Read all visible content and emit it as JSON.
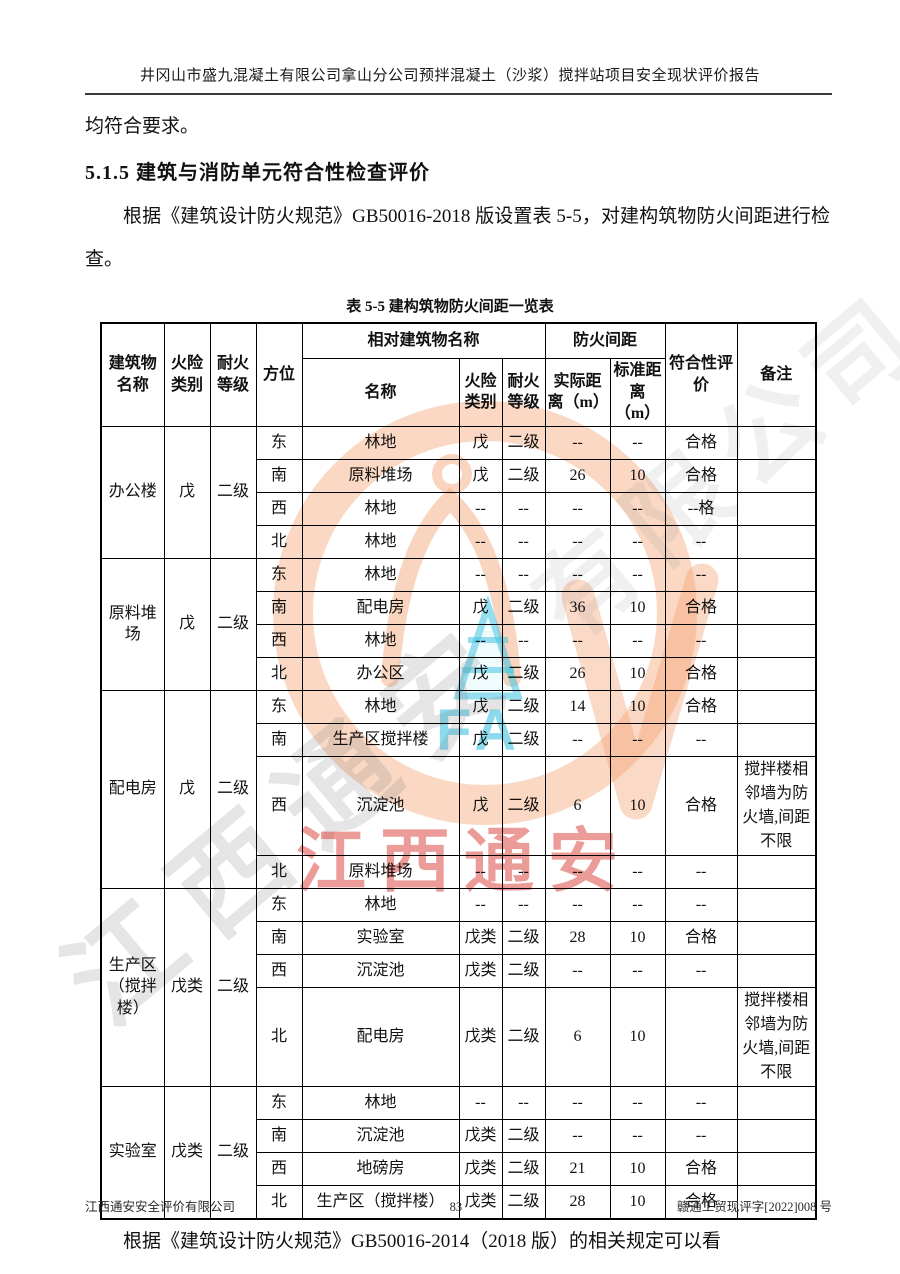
{
  "page": {
    "running_header": "井冈山市盛九混凝土有限公司拿山分公司预拌混凝土（沙浆）搅拌站项目安全现状评价报告",
    "lead_text": "均符合要求。",
    "section_heading": "5.1.5 建筑与消防单元符合性检查评价",
    "paragraph": "根据《建筑设计防火规范》GB50016-2018 版设置表 5-5，对建构筑物防火间距进行检查。",
    "closing_paragraph": "根据《建筑设计防火规范》GB50016-2014（2018 版）的相关规定可以看",
    "footer": {
      "company": "江西通安安全评价有限公司",
      "page_number": "83",
      "doc_number": "赣通工贸现评字[2022]008 号"
    }
  },
  "table": {
    "caption": "表 5-5 建构筑物防火间距一览表",
    "headers": {
      "building_name": "建筑物名称",
      "fire_class": "火险类别",
      "fire_rating": "耐火等级",
      "direction": "方位",
      "relative_group": "相对建筑物名称",
      "distance_group": "防火间距",
      "rel_name": "名称",
      "rel_fire_class": "火险类别",
      "rel_fire_rating": "耐火等级",
      "actual_distance": "实际距离（m）",
      "standard_distance": "标准距离（m）",
      "evaluation": "符合性评价",
      "remark": "备注"
    },
    "groups": [
      {
        "name": "办公楼",
        "fire_class": "戊",
        "fire_rating": "二级",
        "rows": [
          {
            "direction": "东",
            "rel_name": "林地",
            "rel_fire_class": "戊",
            "rel_fire_rating": "二级",
            "actual": "--",
            "standard": "--",
            "evaluation": "合格",
            "remark": ""
          },
          {
            "direction": "南",
            "rel_name": "原料堆场",
            "rel_fire_class": "戊",
            "rel_fire_rating": "二级",
            "actual": "26",
            "standard": "10",
            "evaluation": "合格",
            "remark": ""
          },
          {
            "direction": "西",
            "rel_name": "林地",
            "rel_fire_class": "--",
            "rel_fire_rating": "--",
            "actual": "--",
            "standard": "--",
            "evaluation": "--格",
            "remark": ""
          },
          {
            "direction": "北",
            "rel_name": "林地",
            "rel_fire_class": "--",
            "rel_fire_rating": "--",
            "actual": "--",
            "standard": "--",
            "evaluation": "--",
            "remark": ""
          }
        ]
      },
      {
        "name": "原料堆场",
        "fire_class": "戊",
        "fire_rating": "二级",
        "rows": [
          {
            "direction": "东",
            "rel_name": "林地",
            "rel_fire_class": "--",
            "rel_fire_rating": "--",
            "actual": "--",
            "standard": "--",
            "evaluation": "--",
            "remark": ""
          },
          {
            "direction": "南",
            "rel_name": "配电房",
            "rel_fire_class": "戊",
            "rel_fire_rating": "二级",
            "actual": "36",
            "standard": "10",
            "evaluation": "合格",
            "remark": ""
          },
          {
            "direction": "西",
            "rel_name": "林地",
            "rel_fire_class": "--",
            "rel_fire_rating": "--",
            "actual": "--",
            "standard": "--",
            "evaluation": "--",
            "remark": ""
          },
          {
            "direction": "北",
            "rel_name": "办公区",
            "rel_fire_class": "戊",
            "rel_fire_rating": "二级",
            "actual": "26",
            "standard": "10",
            "evaluation": "合格",
            "remark": ""
          }
        ]
      },
      {
        "name": "配电房",
        "fire_class": "戊",
        "fire_rating": "二级",
        "rows": [
          {
            "direction": "东",
            "rel_name": "林地",
            "rel_fire_class": "戊",
            "rel_fire_rating": "二级",
            "actual": "14",
            "standard": "10",
            "evaluation": "合格",
            "remark": ""
          },
          {
            "direction": "南",
            "rel_name": "生产区搅拌楼",
            "rel_fire_class": "戊",
            "rel_fire_rating": "二级",
            "actual": "--",
            "standard": "--",
            "evaluation": "--",
            "remark": ""
          },
          {
            "direction": "西",
            "rel_name": "沉淀池",
            "rel_fire_class": "戊",
            "rel_fire_rating": "二级",
            "actual": "6",
            "standard": "10",
            "evaluation": "合格",
            "remark": "搅拌楼相邻墙为防火墙,间距不限"
          },
          {
            "direction": "北",
            "rel_name": "原料堆场",
            "rel_fire_class": "--",
            "rel_fire_rating": "--",
            "actual": "--",
            "standard": "--",
            "evaluation": "--",
            "remark": ""
          }
        ]
      },
      {
        "name": "生产区（搅拌楼）",
        "fire_class": "戊类",
        "fire_rating": "二级",
        "rows": [
          {
            "direction": "东",
            "rel_name": "林地",
            "rel_fire_class": "--",
            "rel_fire_rating": "--",
            "actual": "--",
            "standard": "--",
            "evaluation": "--",
            "remark": ""
          },
          {
            "direction": "南",
            "rel_name": "实验室",
            "rel_fire_class": "戊类",
            "rel_fire_rating": "二级",
            "actual": "28",
            "standard": "10",
            "evaluation": "合格",
            "remark": ""
          },
          {
            "direction": "西",
            "rel_name": "沉淀池",
            "rel_fire_class": "戊类",
            "rel_fire_rating": "二级",
            "actual": "--",
            "standard": "--",
            "evaluation": "--",
            "remark": ""
          },
          {
            "direction": "北",
            "rel_name": "配电房",
            "rel_fire_class": "戊类",
            "rel_fire_rating": "二级",
            "actual": "6",
            "standard": "10",
            "evaluation": "",
            "remark": "搅拌楼相邻墙为防火墙,间距不限"
          }
        ]
      },
      {
        "name": "实验室",
        "fire_class": "戊类",
        "fire_rating": "二级",
        "rows": [
          {
            "direction": "东",
            "rel_name": "林地",
            "rel_fire_class": "--",
            "rel_fire_rating": "--",
            "actual": "--",
            "standard": "--",
            "evaluation": "--",
            "remark": ""
          },
          {
            "direction": "南",
            "rel_name": "沉淀池",
            "rel_fire_class": "戊类",
            "rel_fire_rating": "二级",
            "actual": "--",
            "standard": "--",
            "evaluation": "--",
            "remark": ""
          },
          {
            "direction": "西",
            "rel_name": "地磅房",
            "rel_fire_class": "戊类",
            "rel_fire_rating": "二级",
            "actual": "21",
            "standard": "10",
            "evaluation": "合格",
            "remark": ""
          },
          {
            "direction": "北",
            "rel_name": "生产区（搅拌楼）",
            "rel_fire_class": "戊类",
            "rel_fire_rating": "二级",
            "actual": "28",
            "standard": "10",
            "evaluation": "合格",
            "remark": ""
          }
        ]
      }
    ]
  },
  "watermarks": {
    "red_text": "江西通安",
    "gray_text_a": "江西通安",
    "gray_text_b": "有限公司",
    "seal_letters": "FA",
    "red_color": "#D93A32",
    "seal_orange": "#F2A171",
    "seal_cyan": "#3FC4E2"
  }
}
